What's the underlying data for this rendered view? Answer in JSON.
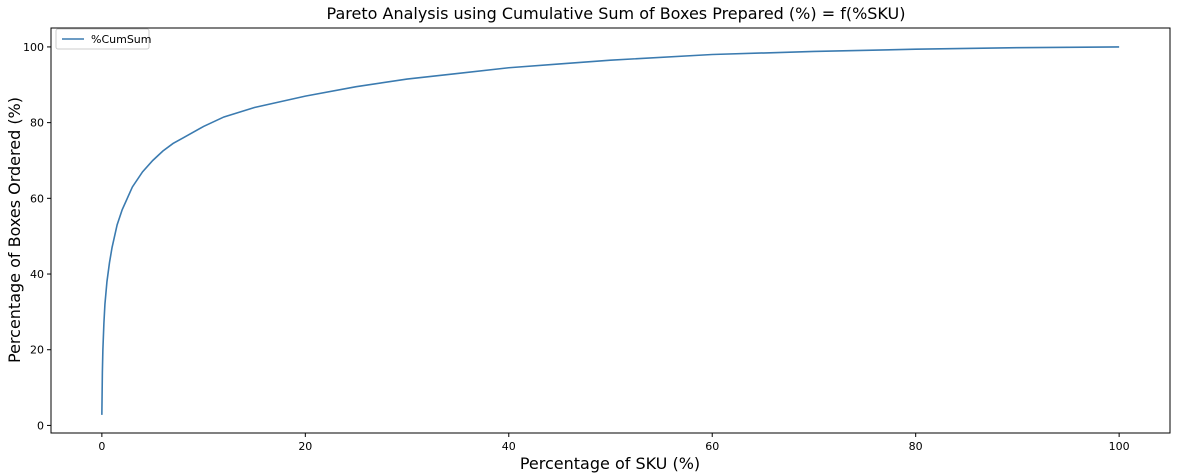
{
  "chart_data": {
    "type": "line",
    "title": "Pareto Analysis using Cumulative Sum of Boxes Prepared (%) = f(%SKU)",
    "xlabel": "Percentage of SKU (%)",
    "ylabel": "Percentage of Boxes Ordered (%)",
    "xlim": [
      -5,
      105
    ],
    "ylim": [
      -2,
      105
    ],
    "xticks": [
      0,
      20,
      40,
      60,
      80,
      100
    ],
    "xtick_labels": [
      "0",
      "20",
      "40",
      "60",
      "80",
      "100"
    ],
    "yticks": [
      0,
      20,
      40,
      60,
      80,
      100
    ],
    "ytick_labels": [
      "0",
      "20",
      "40",
      "60",
      "80",
      "100"
    ],
    "grid": false,
    "legend": {
      "position": "top-left",
      "entries": [
        "%CumSum"
      ]
    },
    "series": [
      {
        "name": "%CumSum",
        "color": "#3b7bb0",
        "x": [
          0,
          0.05,
          0.1,
          0.2,
          0.3,
          0.5,
          0.75,
          1,
          1.5,
          2,
          2.5,
          3,
          4,
          5,
          6,
          7,
          8,
          10,
          12,
          15,
          20,
          25,
          30,
          35,
          40,
          45,
          50,
          60,
          70,
          80,
          90,
          100
        ],
        "y": [
          2.8,
          14,
          20,
          27,
          32,
          38,
          43,
          47,
          53,
          57,
          60,
          63,
          67,
          70,
          72.5,
          74.5,
          76,
          79,
          81.5,
          84,
          87,
          89.5,
          91.5,
          93,
          94.5,
          95.5,
          96.5,
          98,
          98.8,
          99.4,
          99.8,
          100
        ]
      }
    ]
  }
}
